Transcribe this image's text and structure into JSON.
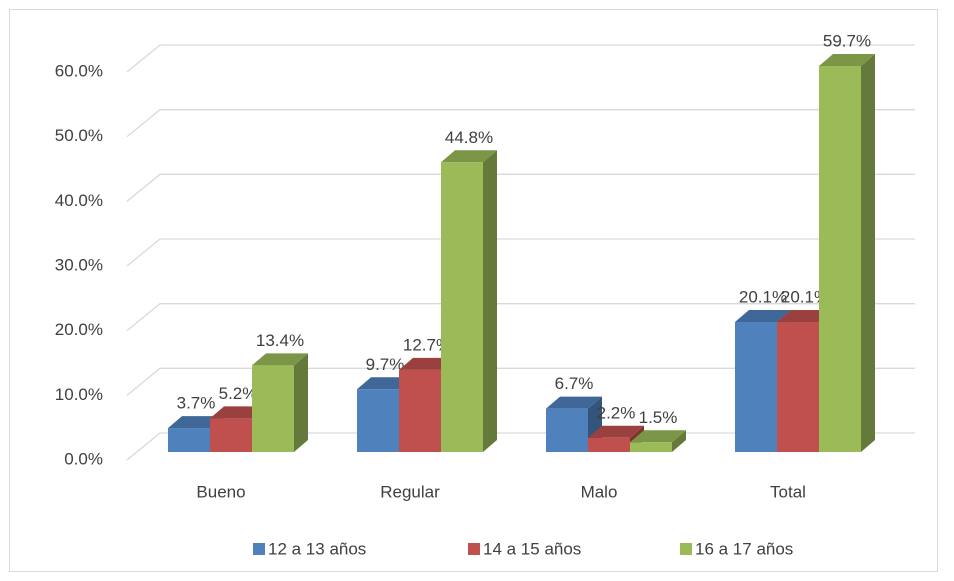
{
  "chart_data": {
    "type": "bar3d",
    "categories": [
      "Bueno",
      "Regular",
      "Malo",
      "Total"
    ],
    "series": [
      {
        "name": "12 a 13 años",
        "color": "#4f81bd",
        "values": [
          3.7,
          9.7,
          6.7,
          20.1
        ],
        "value_labels": [
          "3.7%",
          "9.7%",
          "6.7%",
          "20.1%"
        ]
      },
      {
        "name": "14 a 15 años",
        "color": "#c0504d",
        "values": [
          5.2,
          12.7,
          2.2,
          20.1
        ],
        "value_labels": [
          "5.2%",
          "12.7%",
          "2.2%",
          "20.1%"
        ]
      },
      {
        "name": "16 a 17 años",
        "color": "#9bbb59",
        "values": [
          13.4,
          44.8,
          1.5,
          59.7
        ],
        "value_labels": [
          "13.4%",
          "44.8%",
          "1.5%",
          "59.7%"
        ]
      }
    ],
    "ylim": [
      0,
      60
    ],
    "yticks": [
      {
        "value": 0,
        "label": "0.0%"
      },
      {
        "value": 10,
        "label": "10.0%"
      },
      {
        "value": 20,
        "label": "20.0%"
      },
      {
        "value": 30,
        "label": "30.0%"
      },
      {
        "value": 40,
        "label": "40.0%"
      },
      {
        "value": 50,
        "label": "50.0%"
      },
      {
        "value": 60,
        "label": "60.0%"
      }
    ],
    "grid": true,
    "legend": "bottom"
  }
}
